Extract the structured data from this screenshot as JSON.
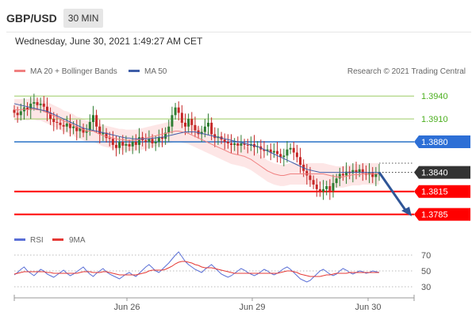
{
  "header": {
    "pair": "GBP/USD",
    "timeframe": "30 MIN"
  },
  "datetime": "Wednesday, June 30, 2021 1:49:27 AM CET",
  "legend": {
    "ma20": {
      "label": "MA 20 + Bollinger Bands",
      "color": "#f08080"
    },
    "ma50": {
      "label": "MA 50",
      "color": "#3f5ea8"
    },
    "credit": "Research © 2021 Trading Central",
    "rsi": {
      "label": "RSI",
      "color": "#5a6fd6"
    },
    "ma9": {
      "label": "9MA",
      "color": "#e53935"
    }
  },
  "colors": {
    "up": "#2e7d32",
    "down": "#c62828",
    "resistance": "#9ccc65",
    "pivot": "#1565c0",
    "support": "#ff0000",
    "current": "#333333",
    "arrow": "#2f5597"
  },
  "chart_data": [
    {
      "type": "candlestick",
      "title": "GBP/USD 30 MIN",
      "ylim": [
        1.3768,
        1.3962
      ],
      "x_ticks": [
        "Jun 26",
        "Jun 29",
        "Jun 30"
      ],
      "levels": [
        {
          "name": "resistance-2",
          "value": 1.394,
          "label": "1.3940",
          "style": "resistance"
        },
        {
          "name": "resistance-1",
          "value": 1.391,
          "label": "1.3910",
          "style": "resistance"
        },
        {
          "name": "pivot",
          "value": 1.388,
          "label": "1.3880",
          "style": "pivot"
        },
        {
          "name": "current-price",
          "value": 1.384,
          "label": "1.3840",
          "style": "current"
        },
        {
          "name": "support-1",
          "value": 1.3815,
          "label": "1.3815",
          "style": "support"
        },
        {
          "name": "support-2",
          "value": 1.3785,
          "label": "1.3785",
          "style": "support"
        }
      ],
      "closes": [
        1.3918,
        1.3915,
        1.392,
        1.3925,
        1.3922,
        1.393,
        1.3932,
        1.3928,
        1.393,
        1.3926,
        1.3918,
        1.391,
        1.3906,
        1.3905,
        1.3902,
        1.39,
        1.3904,
        1.3898,
        1.39,
        1.3894,
        1.3898,
        1.3892,
        1.3895,
        1.3906,
        1.3915,
        1.39,
        1.389,
        1.3892,
        1.3885,
        1.3884,
        1.3876,
        1.3872,
        1.388,
        1.3875,
        1.3877,
        1.3874,
        1.388,
        1.3876,
        1.3886,
        1.3882,
        1.388,
        1.3884,
        1.3878,
        1.388,
        1.3886,
        1.3884,
        1.3892,
        1.39,
        1.3915,
        1.3925,
        1.3918,
        1.3905,
        1.39,
        1.391,
        1.3902,
        1.3895,
        1.389,
        1.3893,
        1.39,
        1.3905,
        1.389,
        1.3885,
        1.3887,
        1.3883,
        1.388,
        1.3878,
        1.3876,
        1.3878,
        1.3875,
        1.3878,
        1.3876,
        1.3875,
        1.3877,
        1.3873,
        1.3874,
        1.387,
        1.3868,
        1.387,
        1.3866,
        1.3868,
        1.3864,
        1.386,
        1.3862,
        1.387,
        1.3872,
        1.3866,
        1.386,
        1.385,
        1.3842,
        1.3836,
        1.383,
        1.3824,
        1.3818,
        1.3815,
        1.3818,
        1.3822,
        1.3816,
        1.3826,
        1.3832,
        1.3838,
        1.3836,
        1.3841,
        1.3839,
        1.3843,
        1.384,
        1.3844,
        1.3839,
        1.3837,
        1.384,
        1.3834,
        1.3838,
        1.384
      ],
      "ma20": [
        1.3922,
        1.3922,
        1.3922,
        1.3923,
        1.3922,
        1.3923,
        1.3923,
        1.3922,
        1.3922,
        1.392,
        1.3918,
        1.3916,
        1.3914,
        1.3912,
        1.391,
        1.3907,
        1.3906,
        1.3904,
        1.3902,
        1.3899,
        1.3898,
        1.3896,
        1.3894,
        1.3894,
        1.3894,
        1.3892,
        1.389,
        1.3888,
        1.3887,
        1.3886,
        1.3885,
        1.3884,
        1.3883,
        1.3883,
        1.3882,
        1.3882,
        1.3882,
        1.3882,
        1.3883,
        1.3884,
        1.3885,
        1.3886,
        1.3887,
        1.3888,
        1.3889,
        1.389,
        1.3891,
        1.3892,
        1.3893,
        1.3894,
        1.3894,
        1.3893,
        1.3892,
        1.3891,
        1.3889,
        1.3887,
        1.3885,
        1.3883,
        1.3881,
        1.3879,
        1.3877,
        1.3875,
        1.3873,
        1.3871,
        1.3869,
        1.3867,
        1.3865,
        1.3864,
        1.3863,
        1.3862,
        1.3861,
        1.3859,
        1.3857,
        1.3854,
        1.3851,
        1.3848,
        1.3845,
        1.3842,
        1.384,
        1.3838,
        1.3837,
        1.3836,
        1.3836,
        1.3837,
        1.3838,
        1.3838,
        1.3838,
        1.3838,
        1.3838,
        1.3838,
        1.3838,
        1.3838,
        1.3838,
        1.3838,
        1.3838,
        1.3837,
        1.3836,
        1.3835,
        1.3834,
        1.3834,
        1.3834,
        1.3835,
        1.3836,
        1.3837,
        1.3837,
        1.3837,
        1.3838,
        1.3838,
        1.3838,
        1.3838,
        1.3838,
        1.3838
      ],
      "ma50": [
        1.393,
        1.3929,
        1.3928,
        1.3927,
        1.3926,
        1.3925,
        1.3924,
        1.3923,
        1.3922,
        1.3921,
        1.392,
        1.3918,
        1.3916,
        1.3914,
        1.3912,
        1.391,
        1.3908,
        1.3906,
        1.3904,
        1.3902,
        1.39,
        1.3898,
        1.3897,
        1.3896,
        1.3895,
        1.3894,
        1.3893,
        1.3892,
        1.3891,
        1.389,
        1.3889,
        1.3888,
        1.3887,
        1.3886,
        1.3885,
        1.3885,
        1.3884,
        1.3884,
        1.3884,
        1.3884,
        1.3884,
        1.3884,
        1.3885,
        1.3885,
        1.3886,
        1.3886,
        1.3887,
        1.3888,
        1.3889,
        1.389,
        1.3891,
        1.3892,
        1.3893,
        1.3893,
        1.3893,
        1.3893,
        1.3892,
        1.3891,
        1.389,
        1.3889,
        1.3888,
        1.3887,
        1.3886,
        1.3885,
        1.3884,
        1.3883,
        1.3882,
        1.3881,
        1.388,
        1.3879,
        1.3878,
        1.3877,
        1.3876,
        1.3875,
        1.3874,
        1.3872,
        1.387,
        1.3868,
        1.3866,
        1.3864,
        1.3862,
        1.386,
        1.3858,
        1.3856,
        1.3854,
        1.3852,
        1.385,
        1.3848,
        1.3846,
        1.3844,
        1.3843,
        1.3842,
        1.3841,
        1.384,
        1.384,
        1.384,
        1.384,
        1.384,
        1.384,
        1.384,
        1.384,
        1.384,
        1.384,
        1.384,
        1.384,
        1.384,
        1.384,
        1.384,
        1.384,
        1.384,
        1.384,
        1.384
      ]
    },
    {
      "type": "line",
      "title": "RSI",
      "ylim": [
        20,
        80
      ],
      "y_ticks": [
        70,
        50,
        30
      ],
      "rsi": [
        45,
        48,
        52,
        55,
        50,
        47,
        44,
        48,
        52,
        50,
        46,
        44,
        42,
        45,
        48,
        51,
        47,
        44,
        46,
        49,
        52,
        55,
        50,
        46,
        43,
        47,
        50,
        53,
        49,
        46,
        44,
        42,
        40,
        43,
        46,
        48,
        45,
        43,
        47,
        51,
        55,
        58,
        54,
        50,
        48,
        52,
        56,
        60,
        65,
        70,
        74,
        68,
        62,
        58,
        55,
        52,
        50,
        48,
        52,
        55,
        58,
        54,
        50,
        46,
        44,
        42,
        44,
        47,
        50,
        53,
        51,
        48,
        46,
        44,
        46,
        49,
        52,
        50,
        47,
        45,
        47,
        50,
        53,
        55,
        52,
        48,
        44,
        40,
        38,
        36,
        38,
        42,
        46,
        50,
        52,
        49,
        46,
        44,
        46,
        50,
        53,
        51,
        48,
        46,
        48,
        50,
        49,
        47,
        48,
        50,
        49,
        48
      ],
      "ma9": [
        46,
        47,
        48,
        49,
        49,
        49,
        49,
        49,
        49,
        49,
        48,
        48,
        47,
        47,
        47,
        47,
        47,
        47,
        47,
        47,
        48,
        49,
        49,
        49,
        48,
        48,
        48,
        49,
        49,
        48,
        47,
        46,
        45,
        45,
        45,
        45,
        45,
        45,
        46,
        47,
        48,
        50,
        51,
        51,
        51,
        51,
        52,
        54,
        56,
        59,
        61,
        62,
        62,
        61,
        60,
        58,
        57,
        55,
        54,
        54,
        54,
        53,
        52,
        51,
        50,
        49,
        48,
        47,
        47,
        47,
        47,
        47,
        47,
        47,
        47,
        47,
        47,
        47,
        47,
        47,
        47,
        48,
        49,
        50,
        50,
        49,
        48,
        46,
        45,
        44,
        43,
        43,
        43,
        43,
        44,
        45,
        45,
        46,
        47,
        47,
        47,
        47,
        48,
        48,
        48,
        48,
        48,
        48,
        48,
        48,
        48,
        48
      ]
    }
  ]
}
